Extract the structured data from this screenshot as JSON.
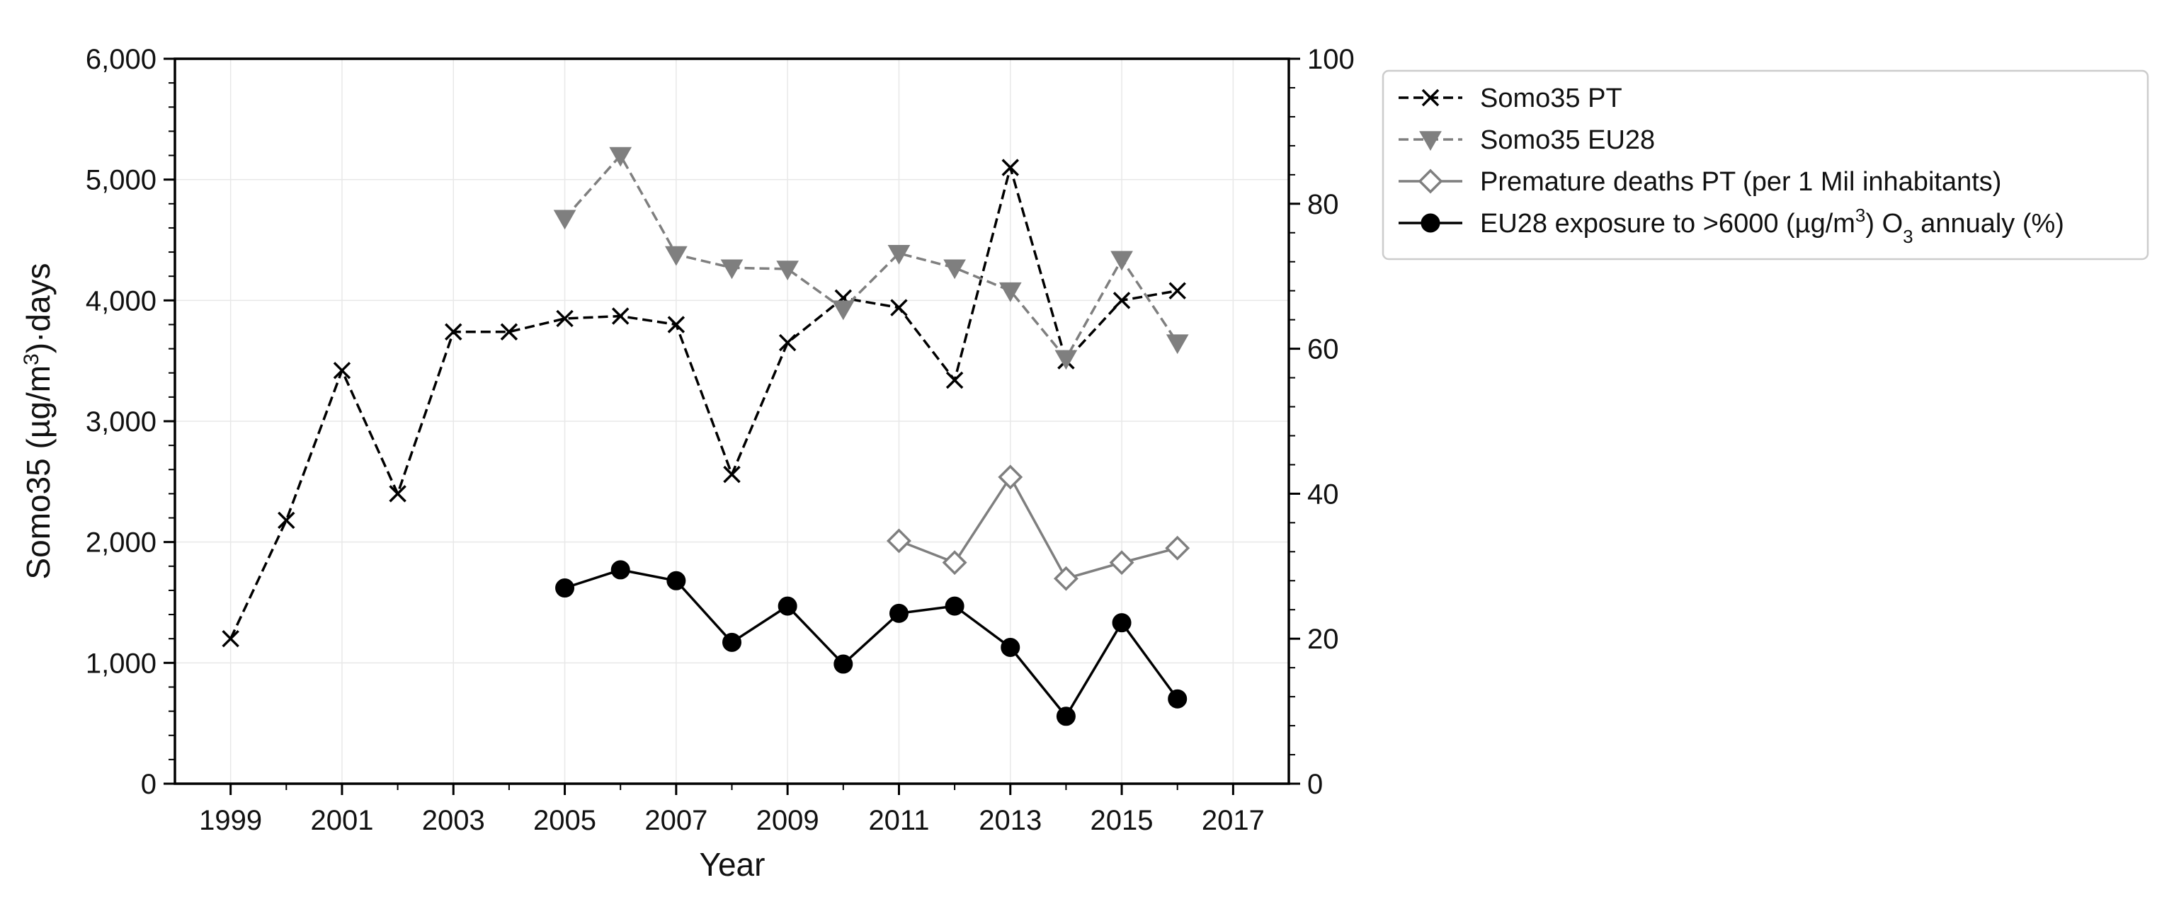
{
  "chart_data": {
    "type": "line",
    "xlabel": "Year",
    "ylabel_left_prefix": "Somo35 (µg/m",
    "ylabel_left_sup": "3",
    "ylabel_left_suffix": ")·days",
    "ylabel_right": "",
    "xlim": [
      1998,
      2018
    ],
    "ylim_left": [
      0,
      6000
    ],
    "ylim_right": [
      0,
      100
    ],
    "x_ticks": [
      1999,
      2001,
      2003,
      2005,
      2007,
      2009,
      2011,
      2013,
      2015,
      2017
    ],
    "y_left_ticks": [
      0,
      1000,
      2000,
      3000,
      4000,
      5000,
      6000
    ],
    "y_left_tick_labels": [
      "0",
      "1,000",
      "2,000",
      "3,000",
      "4,000",
      "5,000",
      "6,000"
    ],
    "y_right_ticks": [
      0,
      20,
      40,
      60,
      80,
      100
    ],
    "grid": true,
    "legend_position": "outside-right-top",
    "series": [
      {
        "name": "Somo35 PT",
        "axis": "left",
        "color": "#000000",
        "line": "dashed",
        "marker": "x",
        "x": [
          1999,
          2000,
          2001,
          2002,
          2003,
          2004,
          2005,
          2006,
          2007,
          2008,
          2009,
          2010,
          2011,
          2012,
          2013,
          2014,
          2015,
          2016
        ],
        "values": [
          1200,
          2180,
          3420,
          2400,
          3740,
          3740,
          3850,
          3870,
          3800,
          2560,
          3650,
          4020,
          3940,
          3340,
          5100,
          3500,
          4000,
          4080
        ]
      },
      {
        "name": "Somo35 EU28",
        "axis": "left",
        "color": "#7f7f7f",
        "line": "dashed",
        "marker": "triangle-down",
        "x": [
          2005,
          2006,
          2007,
          2008,
          2009,
          2010,
          2011,
          2012,
          2013,
          2014,
          2015,
          2016
        ],
        "values": [
          4680,
          5200,
          4380,
          4270,
          4260,
          3930,
          4390,
          4270,
          4080,
          3520,
          4340,
          3650
        ]
      },
      {
        "name": "Premature deaths PT (per 1 Mil inhabitants)",
        "axis": "right",
        "color": "#7f7f7f",
        "line": "solid",
        "marker": "diamond-open",
        "x": [
          2011,
          2012,
          2013,
          2014,
          2015,
          2016
        ],
        "values": [
          33.5,
          30.5,
          42.3,
          28.3,
          30.5,
          32.5
        ]
      },
      {
        "name": "EU28 exposure to >6000 (µg/m3) O3 annualy (%)",
        "axis": "right",
        "color": "#000000",
        "line": "solid",
        "marker": "circle-filled",
        "x": [
          2005,
          2006,
          2007,
          2008,
          2009,
          2010,
          2011,
          2012,
          2013,
          2014,
          2015,
          2016
        ],
        "values": [
          27,
          29.5,
          28,
          19.5,
          24.5,
          16.5,
          23.5,
          24.5,
          18.8,
          9.3,
          22.2,
          11.7
        ]
      }
    ],
    "legend_rich": [
      [
        {
          "t": "Somo35 PT"
        }
      ],
      [
        {
          "t": "Somo35 EU28"
        }
      ],
      [
        {
          "t": "Premature deaths PT (per 1 Mil inhabitants)"
        }
      ],
      [
        {
          "t": "EU28 exposure to >6000 (µg/m"
        },
        {
          "t": "3",
          "sup": true
        },
        {
          "t": ") O"
        },
        {
          "t": "3",
          "sub": true
        },
        {
          "t": " annualy (%)"
        }
      ]
    ]
  }
}
